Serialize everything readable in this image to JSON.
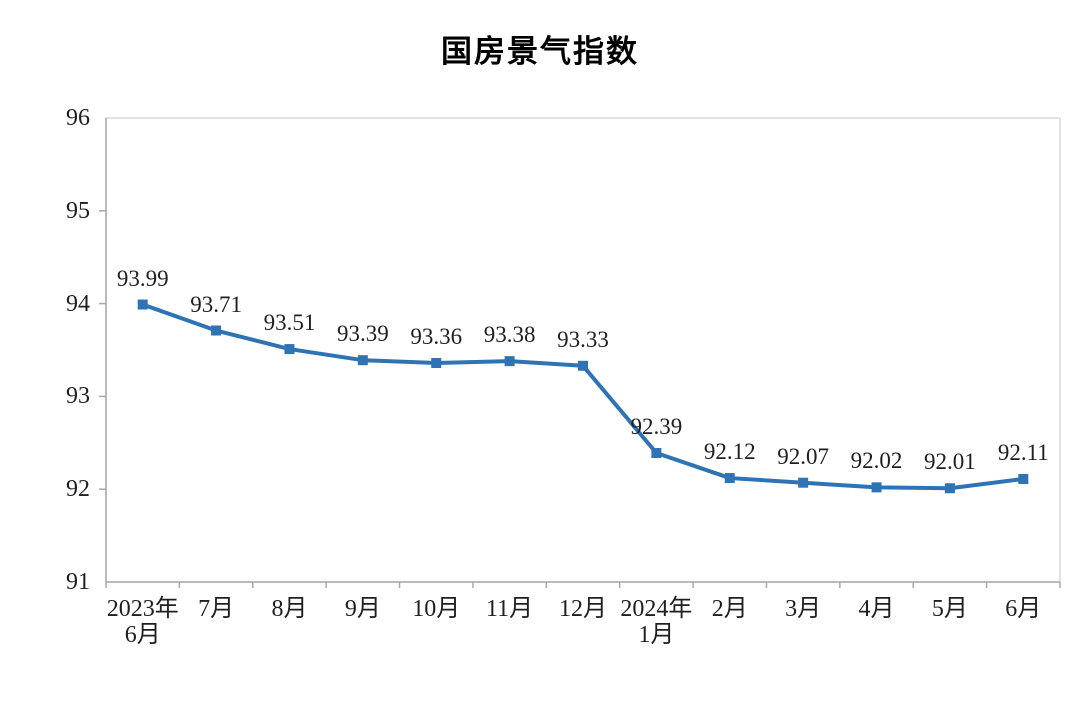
{
  "page": {
    "background": "#FFFFFF"
  },
  "chart_data": {
    "type": "line",
    "title": "国房景气指数",
    "categories": [
      "2023年\n6月",
      "7月",
      "8月",
      "9月",
      "10月",
      "11月",
      "12月",
      "2024年\n1月",
      "2月",
      "3月",
      "4月",
      "5月",
      "6月"
    ],
    "series": [
      {
        "name": "国房景气指数",
        "values": [
          93.99,
          93.71,
          93.51,
          93.39,
          93.36,
          93.38,
          93.33,
          92.39,
          92.12,
          92.07,
          92.02,
          92.01,
          92.11
        ]
      }
    ],
    "data_labels_shown": true,
    "value_format_decimals": 2,
    "xlabel": "",
    "ylabel": "",
    "ylim": [
      91,
      96
    ],
    "y_ticks": [
      96,
      95,
      94,
      93,
      92,
      91
    ],
    "grid": false,
    "legend_position": "none",
    "marker": "square",
    "colors": {
      "series": "#2E74B5",
      "axis_line": "#A9A9A9",
      "plot_border": "#D9D9D9",
      "text": "#1F1F1F",
      "title_text": "#000000",
      "background": "#FFFFFF"
    }
  }
}
